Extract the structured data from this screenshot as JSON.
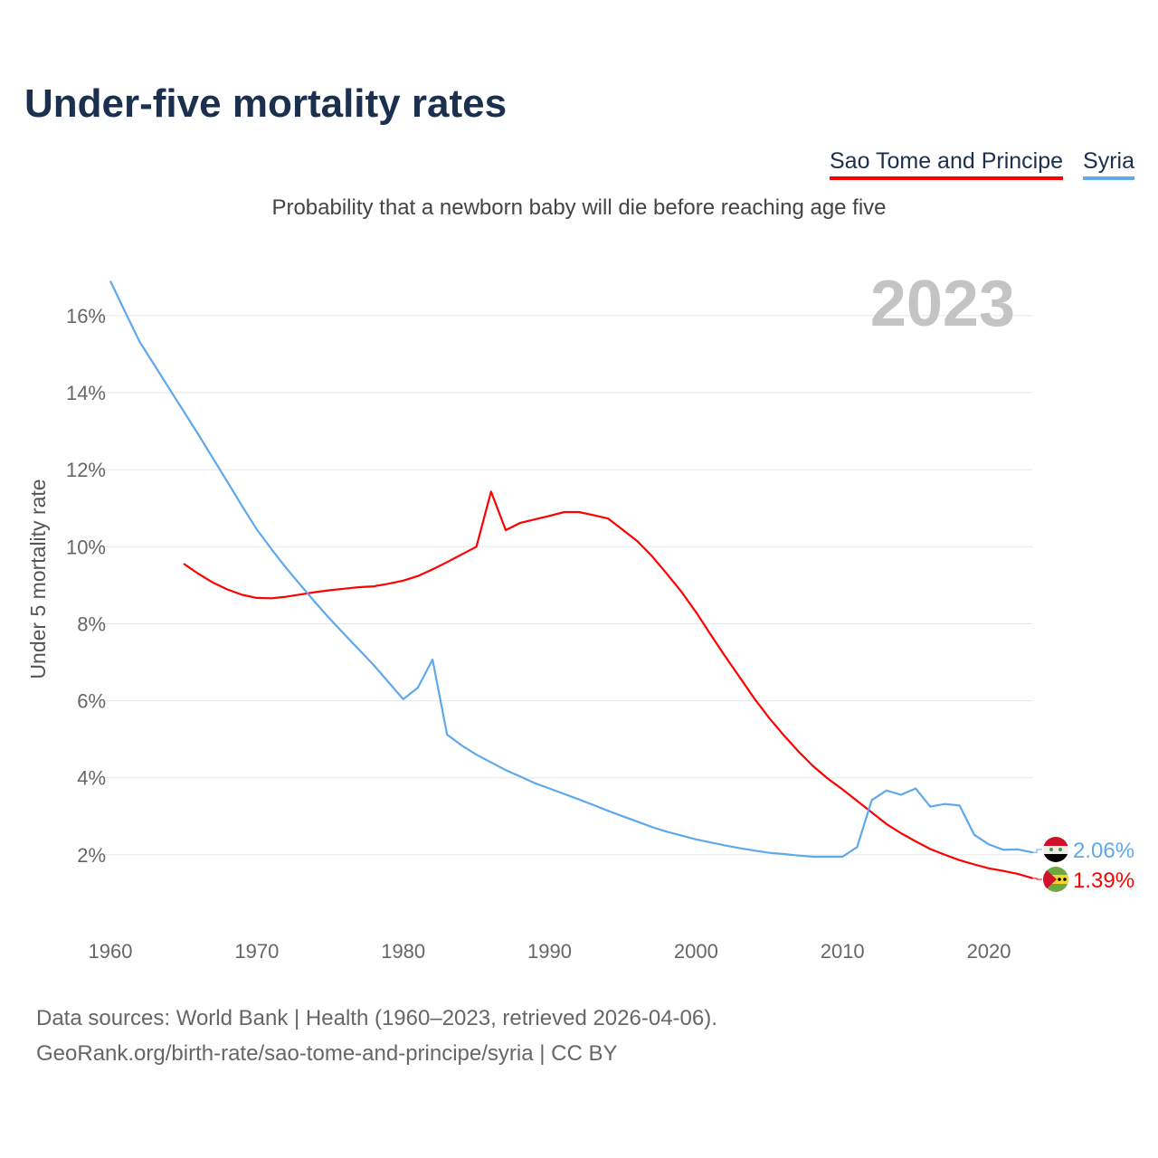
{
  "title": "Under-five mortality rates",
  "subtitle": "Probability that a newborn baby will die before reaching age five",
  "footer": {
    "line1": "Data sources: World Bank | Health (1960–2023, retrieved 2026-04-06).",
    "line2": "GeoRank.org/birth-rate/sao-tome-and-principe/syria | CC BY"
  },
  "chart_data": {
    "type": "line",
    "title": "Under-five mortality rates",
    "ylabel": "Under 5 mortality rate",
    "xlabel": "",
    "year_label": "2023",
    "xlim": [
      1960,
      2023
    ],
    "ylim": [
      0,
      17
    ],
    "grid": true,
    "legend_placement": "top-right",
    "x_ticks": [
      1960,
      1970,
      1980,
      1990,
      2000,
      2010,
      2020
    ],
    "x_tick_labels": [
      "1960",
      "1970",
      "1980",
      "1990",
      "2000",
      "2010",
      "2020"
    ],
    "y_ticks": [
      2,
      4,
      6,
      8,
      10,
      12,
      14,
      16
    ],
    "y_tick_labels": [
      "2%",
      "4%",
      "6%",
      "8%",
      "10%",
      "12%",
      "14%",
      "16%"
    ],
    "series": [
      {
        "name": "Sao Tome and Principe",
        "color": "#ff0000",
        "flag_icon": "sao-tome-flag-icon",
        "start_year": 1965,
        "end_label": "1.39%",
        "values": [
          9.56,
          9.3,
          9.07,
          8.89,
          8.75,
          8.67,
          8.66,
          8.7,
          8.76,
          8.82,
          8.87,
          8.91,
          8.95,
          8.97,
          9.04,
          9.12,
          9.24,
          9.41,
          9.6,
          9.8,
          10.0,
          11.43,
          10.43,
          10.62,
          10.71,
          10.8,
          10.9,
          10.9,
          10.82,
          10.73,
          10.44,
          10.14,
          9.75,
          9.3,
          8.83,
          8.3,
          7.72,
          7.15,
          6.6,
          6.05,
          5.55,
          5.1,
          4.68,
          4.3,
          3.98,
          3.7,
          3.4,
          3.1,
          2.8,
          2.56,
          2.35,
          2.15,
          2.0,
          1.86,
          1.75,
          1.65,
          1.58,
          1.5,
          1.39
        ]
      },
      {
        "name": "Syria",
        "color": "#5ea8ec",
        "flag_icon": "syria-flag-icon",
        "start_year": 1960,
        "end_label": "2.06%",
        "values": [
          16.9,
          16.1,
          15.32,
          14.72,
          14.12,
          13.52,
          12.92,
          12.3,
          11.68,
          11.05,
          10.45,
          9.94,
          9.45,
          9.0,
          8.55,
          8.12,
          7.72,
          7.32,
          6.92,
          6.48,
          6.04,
          6.34,
          7.07,
          5.12,
          4.84,
          4.6,
          4.4,
          4.2,
          4.03,
          3.86,
          3.72,
          3.58,
          3.44,
          3.29,
          3.14,
          3.0,
          2.86,
          2.72,
          2.6,
          2.5,
          2.4,
          2.32,
          2.24,
          2.17,
          2.11,
          2.05,
          2.02,
          1.98,
          1.95,
          1.95,
          1.95,
          2.2,
          3.42,
          3.67,
          3.56,
          3.72,
          3.25,
          3.32,
          3.28,
          2.52,
          2.27,
          2.13,
          2.14,
          2.06
        ]
      }
    ]
  }
}
